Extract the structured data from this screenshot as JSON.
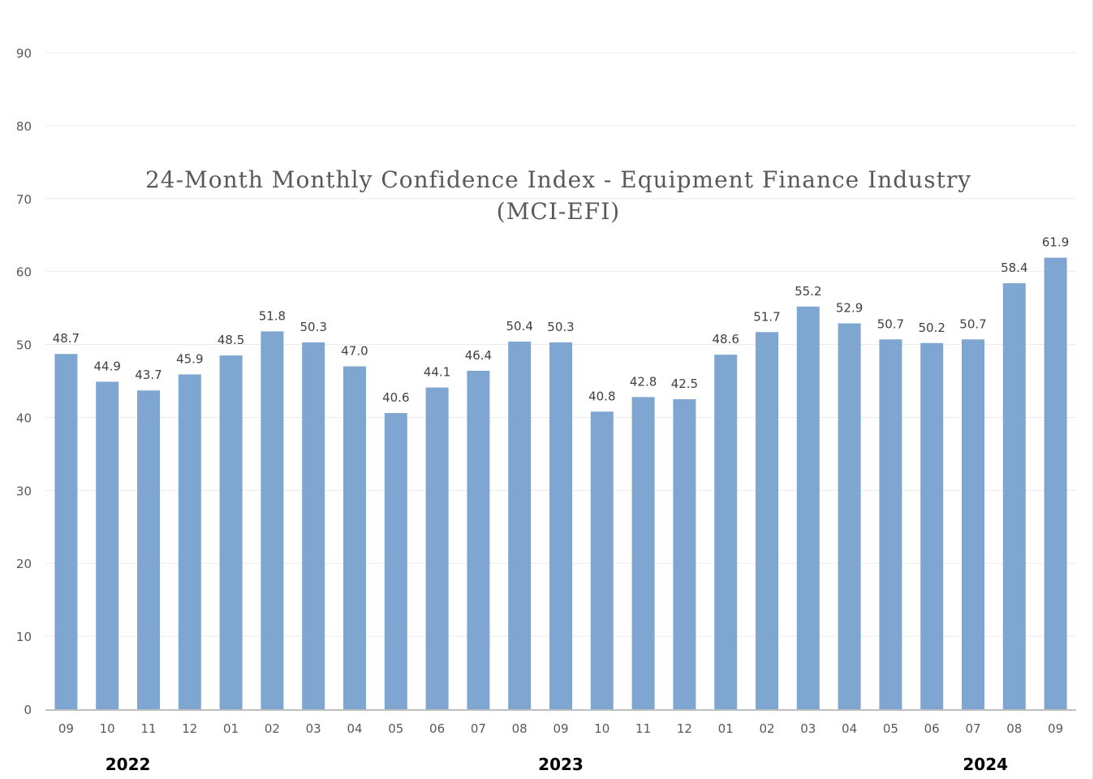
{
  "chart_data": {
    "type": "bar",
    "title_line1": "24-Month Monthly Confidence Index - Equipment Finance Industry",
    "title_line2": "(MCI-EFI)",
    "categories": [
      "09",
      "10",
      "11",
      "12",
      "01",
      "02",
      "03",
      "04",
      "05",
      "06",
      "07",
      "08",
      "09",
      "10",
      "11",
      "12",
      "01",
      "02",
      "03",
      "04",
      "05",
      "06",
      "07",
      "08",
      "09"
    ],
    "values": [
      48.7,
      44.9,
      43.7,
      45.9,
      48.5,
      51.8,
      50.3,
      47.0,
      40.6,
      44.1,
      46.4,
      50.4,
      50.3,
      40.8,
      42.8,
      42.5,
      48.6,
      51.7,
      55.2,
      52.9,
      50.7,
      50.2,
      50.7,
      58.4,
      61.9
    ],
    "value_labels": [
      "48.7",
      "44.9",
      "43.7",
      "45.9",
      "48.5",
      "51.8",
      "50.3",
      "47.0",
      "40.6",
      "44.1",
      "46.4",
      "50.4",
      "50.3",
      "40.8",
      "42.8",
      "42.5",
      "48.6",
      "51.7",
      "55.2",
      "52.9",
      "50.7",
      "50.2",
      "50.7",
      "58.4",
      "61.9"
    ],
    "y_ticks": [
      "0",
      "10",
      "20",
      "30",
      "40",
      "50",
      "60",
      "70",
      "80",
      "90"
    ],
    "ylim": [
      0,
      90
    ],
    "grid": true,
    "year_labels": [
      {
        "label": "2022",
        "category_index": 1.5
      },
      {
        "label": "2023",
        "category_index": 12
      },
      {
        "label": "2024",
        "category_index": 22.3
      }
    ],
    "bar_color": "#7f a6d0",
    "gridline_color": "#ebebeb",
    "axis_color": "#bfbfbf",
    "text_color": "#595959"
  }
}
